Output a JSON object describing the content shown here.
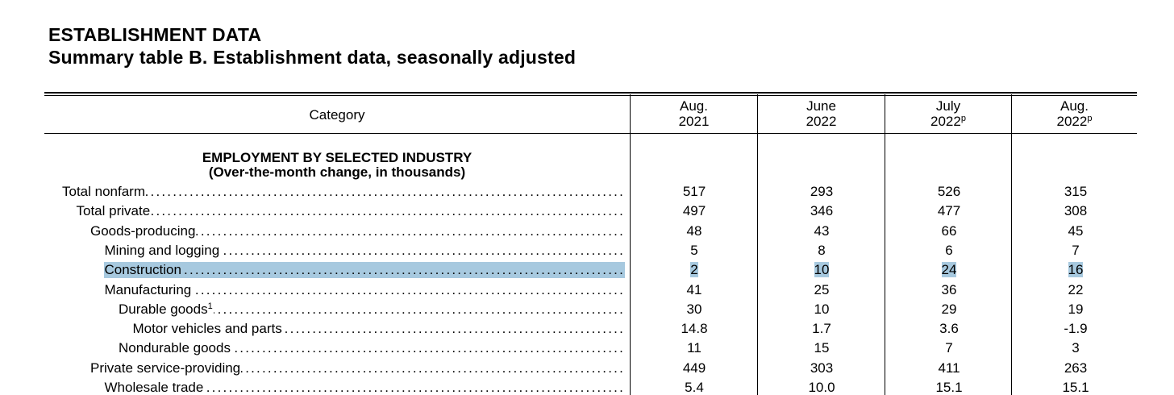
{
  "heading": {
    "line1": "ESTABLISHMENT DATA",
    "line2": "Summary table B. Establishment data, seasonally adjusted"
  },
  "columns": {
    "category": "Category",
    "c1": {
      "line1": "Aug.",
      "line2": "2021",
      "sup": ""
    },
    "c2": {
      "line1": "June",
      "line2": "2022",
      "sup": ""
    },
    "c3": {
      "line1": "July",
      "line2": "2022",
      "sup": "p"
    },
    "c4": {
      "line1": "Aug.",
      "line2": "2022",
      "sup": "p"
    }
  },
  "section": {
    "title": "EMPLOYMENT BY SELECTED INDUSTRY",
    "subtitle": "(Over-the-month change, in thousands)"
  },
  "highlight_color": "#a7c9df",
  "rows": [
    {
      "label": "Total nonfarm",
      "footnote": "",
      "indent": 0,
      "highlighted": false,
      "values": [
        "517",
        "293",
        "526",
        "315"
      ]
    },
    {
      "label": "Total private",
      "footnote": "",
      "indent": 1,
      "highlighted": false,
      "values": [
        "497",
        "346",
        "477",
        "308"
      ]
    },
    {
      "label": "Goods-producing",
      "footnote": "",
      "indent": 2,
      "highlighted": false,
      "values": [
        "48",
        "43",
        "66",
        "45"
      ]
    },
    {
      "label": "Mining and logging",
      "footnote": "",
      "indent": 3,
      "highlighted": false,
      "values": [
        "5",
        "8",
        "6",
        "7"
      ]
    },
    {
      "label": "Construction",
      "footnote": "",
      "indent": 3,
      "highlighted": true,
      "values": [
        "2",
        "10",
        "24",
        "16"
      ]
    },
    {
      "label": "Manufacturing",
      "footnote": "",
      "indent": 3,
      "highlighted": false,
      "values": [
        "41",
        "25",
        "36",
        "22"
      ]
    },
    {
      "label": "Durable goods",
      "footnote": "1",
      "indent": 4,
      "highlighted": false,
      "values": [
        "30",
        "10",
        "29",
        "19"
      ]
    },
    {
      "label": "Motor vehicles and parts",
      "footnote": "",
      "indent": 5,
      "highlighted": false,
      "values": [
        "14.8",
        "1.7",
        "3.6",
        "-1.9"
      ]
    },
    {
      "label": "Nondurable goods",
      "footnote": "",
      "indent": 4,
      "highlighted": false,
      "values": [
        "11",
        "15",
        "7",
        "3"
      ]
    },
    {
      "label": "Private service-providing",
      "footnote": "",
      "indent": 2,
      "highlighted": false,
      "values": [
        "449",
        "303",
        "411",
        "263"
      ]
    },
    {
      "label": "Wholesale trade",
      "footnote": "",
      "indent": 3,
      "highlighted": false,
      "values": [
        "5.4",
        "10.0",
        "15.1",
        "15.1"
      ]
    }
  ]
}
